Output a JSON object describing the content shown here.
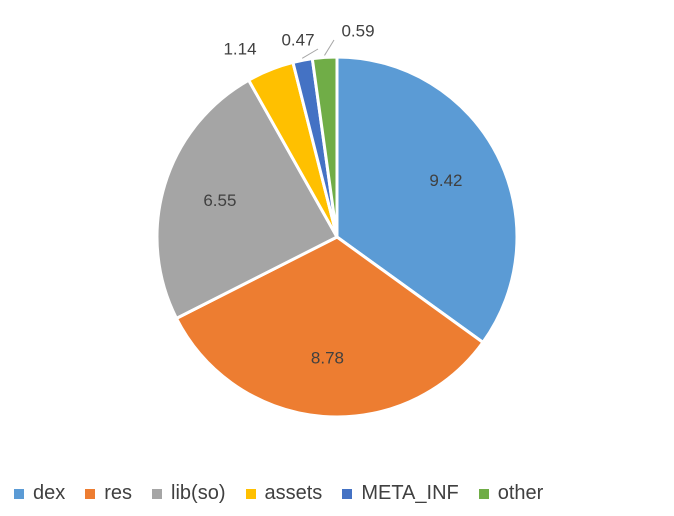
{
  "chart_data": {
    "type": "pie",
    "title": "",
    "categories": [
      "dex",
      "res",
      "lib(so)",
      "assets",
      "META_INF",
      "other"
    ],
    "values": [
      9.42,
      8.78,
      6.55,
      1.14,
      0.47,
      0.59
    ],
    "data_labels": [
      "9.42",
      "8.78",
      "6.55",
      "1.14",
      "0.47",
      "0.59"
    ],
    "colors": [
      "#5b9bd5",
      "#ed7d31",
      "#a5a5a5",
      "#ffc000",
      "#4472c4",
      "#70ad47"
    ],
    "legend_position": "bottom",
    "start_angle": "12 o'clock",
    "direction": "clockwise"
  }
}
